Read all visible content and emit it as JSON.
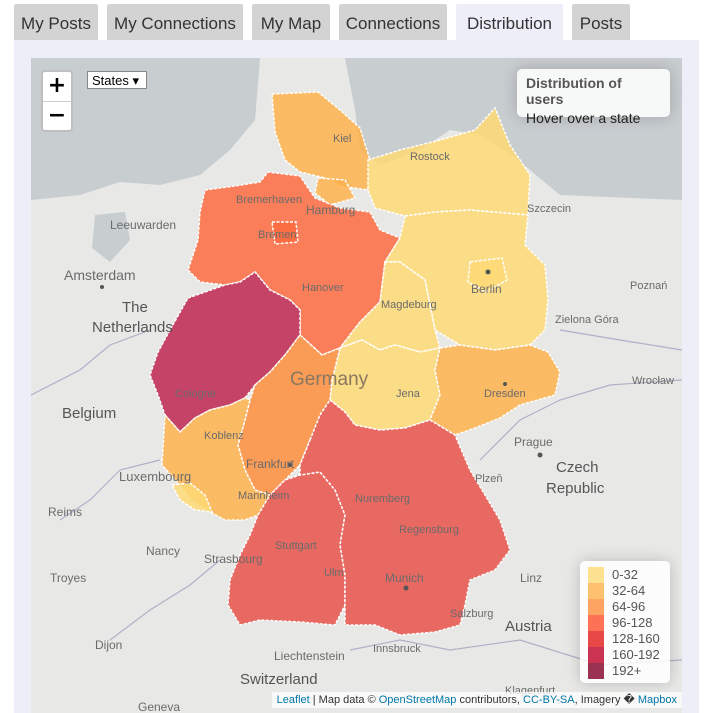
{
  "tabs": [
    {
      "label": "My Posts",
      "active": false
    },
    {
      "label": "My Connections",
      "active": false
    },
    {
      "label": "My Map",
      "active": false
    },
    {
      "label": "Connections",
      "active": false
    },
    {
      "label": "Distribution",
      "active": true
    },
    {
      "label": "Posts",
      "active": false
    }
  ],
  "map": {
    "zoom_in": "+",
    "zoom_out": "−",
    "layer_select": "States ▾",
    "info_title": "Distribution of users",
    "info_text": "Hover over a state",
    "legend": [
      {
        "label": "0-32",
        "color": "#fed976"
      },
      {
        "label": "32-64",
        "color": "#feb24c"
      },
      {
        "label": "64-96",
        "color": "#fd8d3c"
      },
      {
        "label": "96-128",
        "color": "#fc4e2a"
      },
      {
        "label": "128-160",
        "color": "#e31a1c"
      },
      {
        "label": "160-192",
        "color": "#bd0026"
      },
      {
        "label": "192+",
        "color": "#800026"
      }
    ],
    "attribution": {
      "leaflet": "Leaflet",
      "sep": " | Map data © ",
      "osm": "OpenStreetMap",
      "contrib": " contributors, ",
      "license": "CC-BY-SA",
      "imagery": ", Imagery � ",
      "mapbox": "Mapbox"
    },
    "states": [
      {
        "name": "Schleswig-Holstein",
        "range": "32-64"
      },
      {
        "name": "Mecklenburg-Vorpommern",
        "range": "0-32"
      },
      {
        "name": "Hamburg",
        "range": "32-64"
      },
      {
        "name": "Bremen",
        "range": "96-128"
      },
      {
        "name": "Lower Saxony",
        "range": "96-128"
      },
      {
        "name": "Berlin",
        "range": "0-32"
      },
      {
        "name": "Brandenburg",
        "range": "0-32"
      },
      {
        "name": "Saxony-Anhalt",
        "range": "0-32"
      },
      {
        "name": "North Rhine-Westphalia",
        "range": "192+"
      },
      {
        "name": "Hesse",
        "range": "64-96"
      },
      {
        "name": "Thuringia",
        "range": "0-32"
      },
      {
        "name": "Saxony",
        "range": "32-64"
      },
      {
        "name": "Rhineland-Palatinate",
        "range": "32-64"
      },
      {
        "name": "Saarland",
        "range": "0-32"
      },
      {
        "name": "Baden-Württemberg",
        "range": "128-160"
      },
      {
        "name": "Bavaria",
        "range": "128-160"
      }
    ],
    "places": {
      "kiel": "Kiel",
      "rostock": "Rostock",
      "bremerhaven": "Bremerhaven",
      "hamburg": "Hamburg",
      "szczecin": "Szczecin",
      "leeuwarden": "Leeuwarden",
      "bremen": "Bremen",
      "amsterdam": "Amsterdam",
      "hanover": "Hanover",
      "berlin": "Berlin",
      "the": "The",
      "netherlands": "Netherlands",
      "magdeburg": "Magdeburg",
      "poznan": "Poznań",
      "zielona": "Zielona Góra",
      "germany": "Germany",
      "cologne": "Cologne",
      "jena": "Jena",
      "dresden": "Dresden",
      "wroclaw": "Wrocław",
      "belgium": "Belgium",
      "koblenz": "Koblenz",
      "prague": "Prague",
      "frankfurt": "Frankfurt",
      "luxembourg": "Luxembourg",
      "czech": "Czech",
      "republic": "Republic",
      "plzen": "Plzeň",
      "nuremberg": "Nuremberg",
      "mannheim": "Mannheim",
      "reims": "Reims",
      "regensburg": "Regensburg",
      "nancy": "Nancy",
      "stuttgart": "Stuttgart",
      "strasbourg": "Strasbourg",
      "troyes": "Troyes",
      "ulm": "Ulm",
      "munich": "Munich",
      "linz": "Linz",
      "salzburg": "Salzburg",
      "austria": "Austria",
      "dijon": "Dijon",
      "liechtenstein": "Liechtenstein",
      "innsbruck": "Innsbruck",
      "switzerland": "Switzerland",
      "geneva": "Geneva",
      "klagenfurt": "Klagenfurt"
    }
  }
}
